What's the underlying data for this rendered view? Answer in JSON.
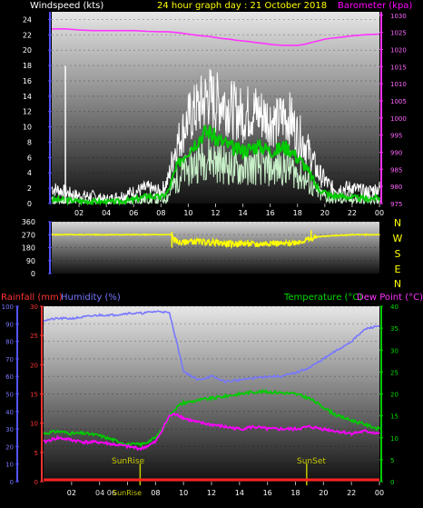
{
  "header": {
    "wind_label": "Windspeed (kts)",
    "title": "24 hour graph day : 21 October 2018",
    "baro_label": "Barometer (kpa)"
  },
  "direction_letters": [
    "N",
    "W",
    "S",
    "E",
    "N"
  ],
  "legend": {
    "rain": "Rainfall (mm)",
    "humidity": "Humidity (%)",
    "temperature": "Temperature (°C)",
    "dewpoint": "Dew Point (°C)"
  },
  "markers": {
    "sunrise": "SunRise",
    "sunset": "SunSet",
    "sunrise_time": 6.9,
    "sunset_time": 18.8,
    "bottom_sunrise": "SunRise",
    "bottom_mixed": "04 06"
  },
  "colors": {
    "wind_gust": "#ffffff",
    "wind_avg": "#00cc00",
    "wind_light": "#c8f0c8",
    "barometer": "#ff33ff",
    "direction": "#ffff00",
    "rain": "#ff2222",
    "humidity": "#7777ff",
    "temperature": "#00cc00",
    "dewpoint": "#ff00ff",
    "sun_marker": "#c8c800"
  },
  "chart_data": [
    {
      "type": "line",
      "name": "windspeed",
      "xticks": [
        "02",
        "04",
        "06",
        "08",
        "10",
        "12",
        "14",
        "16",
        "18",
        "20",
        "22",
        "00"
      ],
      "yticks_left": [
        "0",
        "2",
        "4",
        "6",
        "8",
        "10",
        "12",
        "14",
        "16",
        "18",
        "20",
        "22",
        "24"
      ],
      "yticks_right": [
        "975",
        "980",
        "985",
        "990",
        "995",
        "1000",
        "1005",
        "1010",
        "1015",
        "1020",
        "1025",
        "1030"
      ],
      "ylim": [
        0,
        25
      ],
      "ylim_right": [
        975,
        1031
      ],
      "x": [
        0,
        1,
        2,
        3,
        4,
        5,
        6,
        7,
        8,
        8.5,
        9,
        9.5,
        10,
        10.5,
        11,
        11.5,
        12,
        12.5,
        13,
        13.5,
        14,
        14.5,
        15,
        15.5,
        16,
        16.5,
        17,
        17.5,
        18,
        18.5,
        19,
        19.5,
        20,
        20.5,
        21,
        22,
        23,
        24
      ],
      "series": [
        {
          "name": "gust",
          "values": [
            2,
            1.5,
            1,
            1,
            0.5,
            1,
            1.5,
            2,
            1.5,
            3,
            7,
            9,
            11,
            12,
            13,
            14,
            13,
            13.5,
            12.5,
            12,
            11.5,
            12,
            12,
            11.5,
            11,
            10.5,
            11.5,
            11,
            9,
            8,
            6,
            4,
            3,
            2,
            2,
            2,
            1.5,
            2
          ]
        },
        {
          "name": "average",
          "values": [
            0.5,
            0.5,
            0.3,
            0.3,
            0.2,
            0.3,
            0.5,
            1,
            0.8,
            1.5,
            4,
            6,
            7,
            8,
            9,
            9.5,
            8.5,
            8,
            7.5,
            7,
            7,
            7.2,
            7.5,
            7.3,
            7,
            7,
            7.5,
            7,
            6,
            5,
            3.5,
            2,
            1.5,
            1,
            1,
            0.8,
            0.6,
            0.8
          ]
        },
        {
          "name": "barometer",
          "values": [
            1026,
            1026,
            1025.7,
            1025.5,
            1025.5,
            1025.5,
            1025.5,
            1025.3,
            1025.2,
            1025.2,
            1025,
            1024.8,
            1024.5,
            1024.2,
            1024,
            1023.8,
            1023.5,
            1023.2,
            1023,
            1022.7,
            1022.5,
            1022.3,
            1022,
            1021.8,
            1021.5,
            1021.3,
            1021.2,
            1021.2,
            1021.2,
            1021.5,
            1022,
            1022.5,
            1023,
            1023.3,
            1023.5,
            1024,
            1024.3,
            1024.5
          ]
        }
      ],
      "spike": {
        "x": 1.0,
        "y": 18
      }
    },
    {
      "type": "line",
      "name": "wind_direction",
      "yticks": [
        "0",
        "90",
        "180",
        "270",
        "360"
      ],
      "ylim": [
        0,
        360
      ],
      "x": [
        0,
        2,
        4,
        6,
        8,
        8.8,
        9,
        9.5,
        10,
        11,
        12,
        13,
        14,
        15,
        16,
        17,
        18,
        19,
        19.5,
        20,
        21,
        22,
        23,
        24
      ],
      "values": [
        270,
        270,
        270,
        270,
        270,
        270,
        230,
        210,
        225,
        220,
        215,
        205,
        210,
        200,
        215,
        205,
        220,
        240,
        255,
        260,
        265,
        270,
        270,
        270
      ]
    },
    {
      "type": "line",
      "name": "climate",
      "xticks": [
        "02",
        "04",
        "06",
        "08",
        "10",
        "12",
        "14",
        "16",
        "18",
        "20",
        "22",
        "00"
      ],
      "yticks_left": [
        "0",
        "10",
        "20",
        "30",
        "40",
        "50",
        "60",
        "70",
        "80",
        "90",
        "100"
      ],
      "yticks_rain": [
        "0",
        "5",
        "10",
        "15",
        "20",
        "25",
        "30"
      ],
      "yticks_temp": [
        "0",
        "5",
        "10",
        "15",
        "20",
        "25",
        "30",
        "35",
        "40"
      ],
      "ylim_left": [
        0,
        100
      ],
      "ylim_rain": [
        0,
        30
      ],
      "ylim_temp": [
        0,
        40
      ],
      "x": [
        0,
        1,
        2,
        3,
        4,
        5,
        6,
        7,
        8,
        8.5,
        9,
        9.5,
        10,
        11,
        12,
        13,
        14,
        15,
        16,
        17,
        18,
        19,
        20,
        21,
        22,
        23,
        24
      ],
      "series": [
        {
          "name": "humidity",
          "values": [
            92,
            93,
            93,
            94,
            95,
            95,
            96,
            96,
            97,
            97,
            96,
            80,
            63,
            58,
            60,
            57,
            58,
            59,
            60,
            60,
            62,
            65,
            70,
            75,
            80,
            87,
            89
          ]
        },
        {
          "name": "temperature",
          "values": [
            11,
            11.5,
            11,
            11,
            10.5,
            9.5,
            8.5,
            8.5,
            10,
            12,
            15,
            17,
            18,
            18.5,
            19,
            19.5,
            20,
            20.5,
            20.5,
            20.3,
            20,
            19,
            17,
            15,
            14,
            13,
            12
          ]
        },
        {
          "name": "dewpoint",
          "values": [
            9,
            10,
            9.5,
            9,
            9,
            8.5,
            8,
            7.5,
            9,
            12,
            15,
            15.5,
            14.5,
            13.5,
            13,
            12.5,
            12,
            12.5,
            12,
            12,
            12,
            12.5,
            12,
            11.5,
            11,
            11.5,
            11
          ]
        },
        {
          "name": "rainfall",
          "values": [
            0,
            0,
            0,
            0,
            0,
            0,
            0,
            0,
            0,
            0,
            0,
            0,
            0,
            0,
            0,
            0,
            0,
            0,
            0,
            0,
            0,
            0,
            0,
            0,
            0,
            0,
            0
          ]
        }
      ]
    }
  ]
}
